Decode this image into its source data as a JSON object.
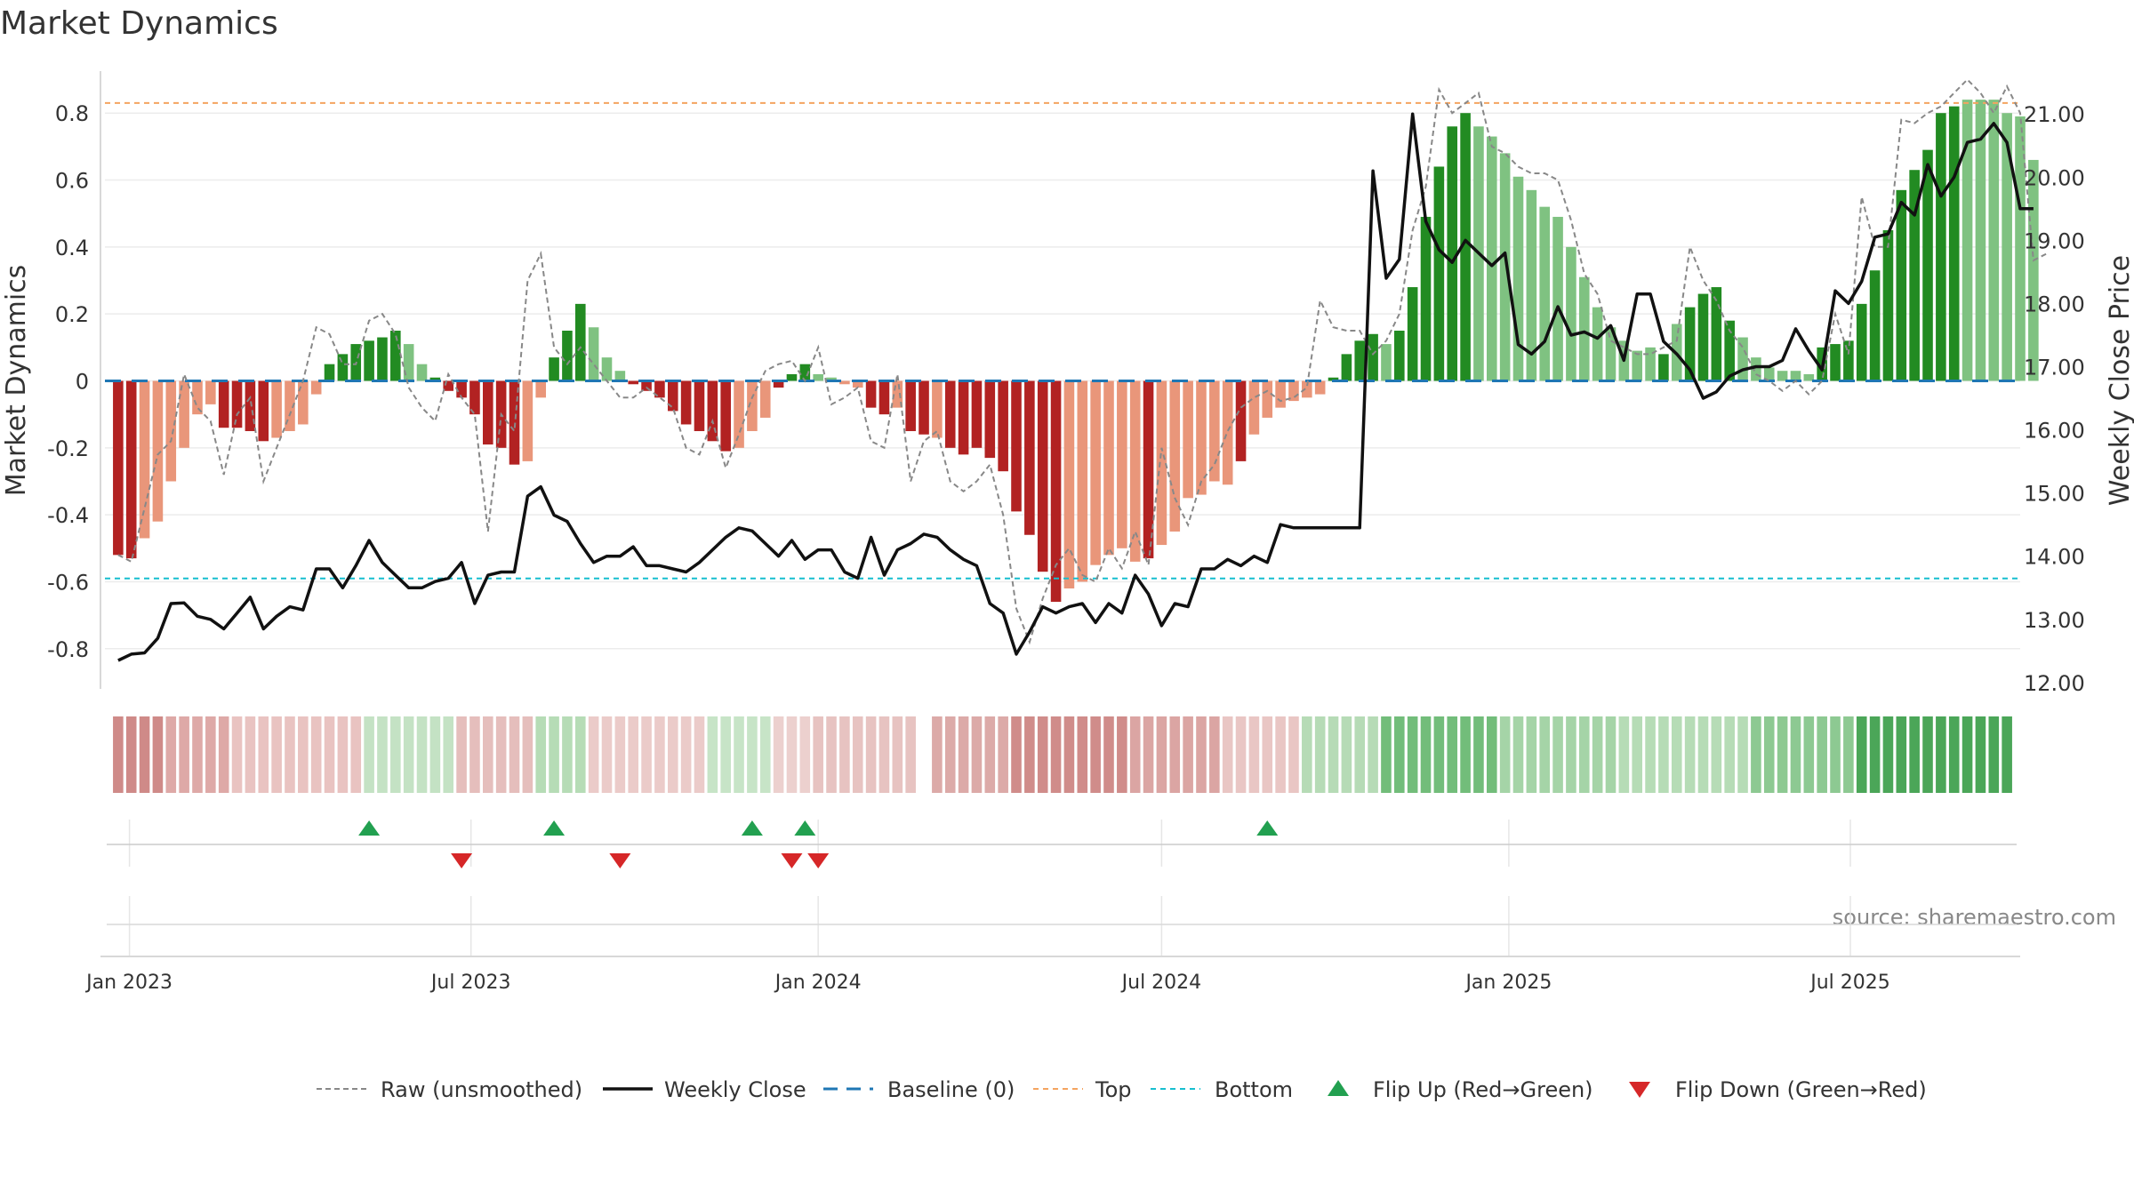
{
  "chart_data": {
    "type": "bar",
    "title": "Market Dynamics",
    "ylabel": "Market Dynamics",
    "ylabel_right": "Weekly Close Price",
    "source": "source: sharemaestro.com",
    "ylim": [
      -0.92,
      0.92
    ],
    "ylim_right": [
      11.9,
      21.65
    ],
    "yticks": [
      "0.8",
      "0.6",
      "0.4",
      "0.2",
      "0",
      "-0.2",
      "-0.4",
      "-0.6",
      "-0.8"
    ],
    "yticks_right": [
      "21.00",
      "20.00",
      "19.00",
      "18.00",
      "17.00",
      "16.00",
      "15.00",
      "14.00",
      "13.00",
      "12.00"
    ],
    "x_range": [
      "2022-12-19",
      "2025-09-29"
    ],
    "xticks": [
      {
        "label": "Jan 2023",
        "date": "2023-01-01"
      },
      {
        "label": "Jul 2023",
        "date": "2023-07-01"
      },
      {
        "label": "Jan 2024",
        "date": "2024-01-01"
      },
      {
        "label": "Jul 2024",
        "date": "2024-07-01"
      },
      {
        "label": "Jan 2025",
        "date": "2025-01-01"
      },
      {
        "label": "Jul 2025",
        "date": "2025-07-01"
      }
    ],
    "top_line": 0.83,
    "bottom_line": -0.59,
    "baseline": 0,
    "start_date": "2022-12-26",
    "bar_values": [
      -0.52,
      -0.53,
      -0.47,
      -0.42,
      -0.3,
      -0.2,
      -0.1,
      -0.07,
      -0.14,
      -0.14,
      -0.15,
      -0.18,
      -0.17,
      -0.15,
      -0.13,
      -0.04,
      0.05,
      0.08,
      0.11,
      0.12,
      0.13,
      0.15,
      0.11,
      0.05,
      0.01,
      -0.03,
      -0.05,
      -0.1,
      -0.19,
      -0.2,
      -0.25,
      -0.24,
      -0.05,
      0.07,
      0.15,
      0.23,
      0.16,
      0.07,
      0.03,
      -0.01,
      -0.03,
      -0.05,
      -0.09,
      -0.13,
      -0.15,
      -0.18,
      -0.21,
      -0.2,
      -0.15,
      -0.11,
      -0.02,
      0.02,
      0.05,
      0.02,
      0.01,
      -0.01,
      -0.02,
      -0.08,
      -0.1,
      -0.08,
      -0.15,
      -0.16,
      -0.17,
      -0.2,
      -0.22,
      -0.2,
      -0.23,
      -0.27,
      -0.39,
      -0.46,
      -0.57,
      -0.66,
      -0.62,
      -0.6,
      -0.55,
      -0.52,
      -0.5,
      -0.54,
      -0.53,
      -0.49,
      -0.45,
      -0.35,
      -0.34,
      -0.3,
      -0.31,
      -0.24,
      -0.16,
      -0.11,
      -0.08,
      -0.06,
      -0.05,
      -0.04,
      0.01,
      0.08,
      0.12,
      0.14,
      0.11,
      0.15,
      0.28,
      0.49,
      0.64,
      0.76,
      0.8,
      0.76,
      0.73,
      0.68,
      0.61,
      0.57,
      0.52,
      0.49,
      0.4,
      0.31,
      0.22,
      0.16,
      0.12,
      0.09,
      0.1,
      0.08,
      0.17,
      0.22,
      0.26,
      0.28,
      0.18,
      0.13,
      0.07,
      0.04,
      0.03,
      0.03,
      0.02,
      0.1,
      0.11,
      0.12,
      0.23,
      0.33,
      0.45,
      0.57,
      0.63,
      0.69,
      0.8,
      0.82,
      0.84,
      0.84,
      0.84,
      0.8,
      0.79,
      0.66
    ],
    "bar_style": [
      "d",
      "d",
      "l",
      "l",
      "l",
      "l",
      "l",
      "l",
      "d",
      "d",
      "d",
      "d",
      "l",
      "l",
      "l",
      "l",
      "d",
      "d",
      "d",
      "d",
      "d",
      "d",
      "l",
      "l",
      "d",
      "d",
      "d",
      "d",
      "d",
      "d",
      "d",
      "l",
      "l",
      "d",
      "d",
      "d",
      "l",
      "l",
      "l",
      "d",
      "d",
      "d",
      "d",
      "d",
      "d",
      "d",
      "d",
      "l",
      "l",
      "l",
      "d",
      "d",
      "d",
      "l",
      "l",
      "l",
      "l",
      "d",
      "d",
      "l",
      "d",
      "d",
      "l",
      "d",
      "d",
      "d",
      "d",
      "d",
      "d",
      "d",
      "d",
      "d",
      "l",
      "l",
      "l",
      "l",
      "l",
      "l",
      "d",
      "l",
      "l",
      "l",
      "l",
      "l",
      "l",
      "d",
      "l",
      "l",
      "l",
      "l",
      "l",
      "l",
      "d",
      "d",
      "d",
      "d",
      "l",
      "d",
      "d",
      "d",
      "d",
      "d",
      "d",
      "l",
      "l",
      "l",
      "l",
      "l",
      "l",
      "l",
      "l",
      "l",
      "l",
      "l",
      "l",
      "l",
      "l",
      "d",
      "l",
      "d",
      "d",
      "d",
      "d",
      "l",
      "l",
      "l",
      "l",
      "l",
      "l",
      "d",
      "d",
      "d",
      "d",
      "d",
      "d",
      "d",
      "d",
      "d",
      "d",
      "d",
      "l",
      "l",
      "l",
      "l"
    ],
    "raw_values": [
      -0.52,
      -0.54,
      -0.38,
      -0.22,
      -0.18,
      0.02,
      -0.08,
      -0.12,
      -0.28,
      -0.1,
      -0.05,
      -0.3,
      -0.2,
      -0.1,
      0.0,
      0.16,
      0.14,
      0.05,
      0.05,
      0.18,
      0.2,
      0.14,
      -0.02,
      -0.08,
      -0.12,
      0.02,
      -0.05,
      -0.1,
      -0.45,
      -0.1,
      -0.15,
      0.3,
      0.38,
      0.1,
      0.05,
      0.1,
      0.05,
      0.0,
      -0.05,
      -0.05,
      -0.02,
      -0.05,
      -0.08,
      -0.2,
      -0.22,
      -0.12,
      -0.26,
      -0.16,
      -0.05,
      0.03,
      0.05,
      0.06,
      0.0,
      0.1,
      -0.07,
      -0.05,
      -0.02,
      -0.18,
      -0.2,
      0.02,
      -0.3,
      -0.18,
      -0.15,
      -0.3,
      -0.33,
      -0.3,
      -0.25,
      -0.4,
      -0.68,
      -0.78,
      -0.65,
      -0.55,
      -0.5,
      -0.58,
      -0.6,
      -0.5,
      -0.56,
      -0.45,
      -0.55,
      -0.2,
      -0.35,
      -0.43,
      -0.3,
      -0.25,
      -0.15,
      -0.08,
      -0.05,
      -0.03,
      -0.06,
      -0.05,
      -0.02,
      0.24,
      0.16,
      0.15,
      0.15,
      0.08,
      0.12,
      0.2,
      0.45,
      0.58,
      0.87,
      0.8,
      0.83,
      0.86,
      0.7,
      0.68,
      0.64,
      0.62,
      0.62,
      0.6,
      0.48,
      0.32,
      0.26,
      0.12,
      0.1,
      0.08,
      0.08,
      0.1,
      0.12,
      0.4,
      0.3,
      0.24,
      0.15,
      0.1,
      0.02,
      0.0,
      -0.03,
      0.0,
      -0.04,
      0.0,
      0.2,
      0.08,
      0.55,
      0.4,
      0.4,
      0.78,
      0.77,
      0.8,
      0.82,
      0.86,
      0.9,
      0.86,
      0.8,
      0.88,
      0.8,
      0.36,
      0.38
    ],
    "price_values": [
      12.35,
      12.45,
      12.47,
      12.7,
      13.25,
      13.26,
      13.05,
      13.0,
      12.85,
      13.1,
      13.35,
      12.85,
      13.05,
      13.2,
      13.15,
      13.8,
      13.8,
      13.5,
      13.85,
      14.25,
      13.9,
      13.7,
      13.5,
      13.5,
      13.6,
      13.65,
      13.9,
      13.25,
      13.7,
      13.75,
      13.75,
      14.95,
      15.1,
      14.65,
      14.55,
      14.2,
      13.9,
      14.0,
      14.0,
      14.15,
      13.85,
      13.85,
      13.8,
      13.75,
      13.9,
      14.1,
      14.3,
      14.45,
      14.4,
      14.2,
      14.0,
      14.25,
      13.95,
      14.1,
      14.1,
      13.75,
      13.65,
      14.3,
      13.7,
      14.1,
      14.2,
      14.35,
      14.3,
      14.1,
      13.95,
      13.85,
      13.25,
      13.1,
      12.45,
      12.8,
      13.2,
      13.1,
      13.2,
      13.25,
      12.95,
      13.25,
      13.1,
      13.7,
      13.4,
      12.9,
      13.25,
      13.2,
      13.8,
      13.8,
      13.95,
      13.85,
      14.0,
      13.9,
      14.5,
      14.45,
      14.45,
      14.45,
      14.45,
      14.45,
      14.45,
      20.1,
      18.4,
      18.7,
      21.0,
      19.3,
      18.85,
      18.65,
      19.0,
      18.8,
      18.6,
      18.8,
      17.35,
      17.2,
      17.4,
      17.95,
      17.5,
      17.55,
      17.45,
      17.65,
      17.1,
      18.15,
      18.15,
      17.4,
      17.2,
      16.95,
      16.5,
      16.6,
      16.85,
      16.95,
      17.0,
      17.0,
      17.1,
      17.6,
      17.25,
      16.95,
      18.2,
      18.0,
      18.35,
      19.05,
      19.1,
      19.6,
      19.4,
      20.2,
      19.7,
      20.0,
      20.55,
      20.6,
      20.85,
      20.55,
      19.5,
      19.5
    ],
    "strip_styles": [
      {
        "from": "2022-12-26",
        "to": "2023-01-16",
        "color": "#cf8a88"
      },
      {
        "from": "2023-01-23",
        "to": "2023-02-20",
        "color": "#dea9a7"
      },
      {
        "from": "2023-02-27",
        "to": "2023-05-01",
        "color": "#e9c3c1"
      },
      {
        "from": "2023-05-08",
        "to": "2023-06-19",
        "color": "#c4e2c4"
      },
      {
        "from": "2023-06-26",
        "to": "2023-07-31",
        "color": "#e5bebc"
      },
      {
        "from": "2023-08-07",
        "to": "2023-08-28",
        "color": "#b6dcb6"
      },
      {
        "from": "2023-09-04",
        "to": "2023-10-30",
        "color": "#ebcbc9"
      },
      {
        "from": "2023-11-06",
        "to": "2023-12-04",
        "color": "#c7e4c7"
      },
      {
        "from": "2023-12-11",
        "to": "2023-12-25",
        "color": "#ecd0ce"
      },
      {
        "from": "2024-01-01",
        "to": "2024-02-19",
        "color": "#e7c3c1"
      },
      {
        "from": "2024-03-04",
        "to": "2024-04-08",
        "color": "#dcaaa8"
      },
      {
        "from": "2024-04-15",
        "to": "2024-06-10",
        "color": "#d08c8a"
      },
      {
        "from": "2024-06-17",
        "to": "2024-07-29",
        "color": "#dba5a3"
      },
      {
        "from": "2024-08-05",
        "to": "2024-09-09",
        "color": "#e9c6c4"
      },
      {
        "from": "2024-09-16",
        "to": "2024-10-21",
        "color": "#b6dbb6"
      },
      {
        "from": "2024-10-28",
        "to": "2024-12-23",
        "color": "#72bd7a"
      },
      {
        "from": "2024-12-30",
        "to": "2025-02-24",
        "color": "#a5d4a7"
      },
      {
        "from": "2025-03-03",
        "to": "2025-05-05",
        "color": "#b6dcb6"
      },
      {
        "from": "2025-05-12",
        "to": "2025-06-30",
        "color": "#8dc992"
      },
      {
        "from": "2025-07-07",
        "to": "2025-09-22",
        "color": "#4ba658"
      }
    ],
    "flip_up_dates": [
      "2023-05-08",
      "2023-08-14",
      "2023-11-27",
      "2023-12-25",
      "2024-08-26"
    ],
    "flip_down_dates": [
      "2023-06-26",
      "2023-09-18",
      "2023-12-18",
      "2024-01-01"
    ],
    "colors": {
      "bar_pos_strong": "#228b22",
      "bar_pos_light": "#7fc281",
      "bar_neg_strong": "#b22222",
      "bar_neg_light": "#e9967a",
      "price_line": "#111111",
      "raw_line": "#888888",
      "baseline": "#1f77b4",
      "top_line": "#f4a460",
      "bottom_line": "#17becf",
      "flip_up": "#22a050",
      "flip_down": "#d62728"
    },
    "legend": [
      {
        "key": "raw",
        "label": "Raw (unsmoothed)"
      },
      {
        "key": "close",
        "label": "Weekly Close"
      },
      {
        "key": "baseline",
        "label": "Baseline (0)"
      },
      {
        "key": "top",
        "label": "Top"
      },
      {
        "key": "bottom",
        "label": "Bottom"
      },
      {
        "key": "flipup",
        "label": "Flip Up (Red→Green)"
      },
      {
        "key": "flipdown",
        "label": "Flip Down (Green→Red)"
      }
    ]
  }
}
